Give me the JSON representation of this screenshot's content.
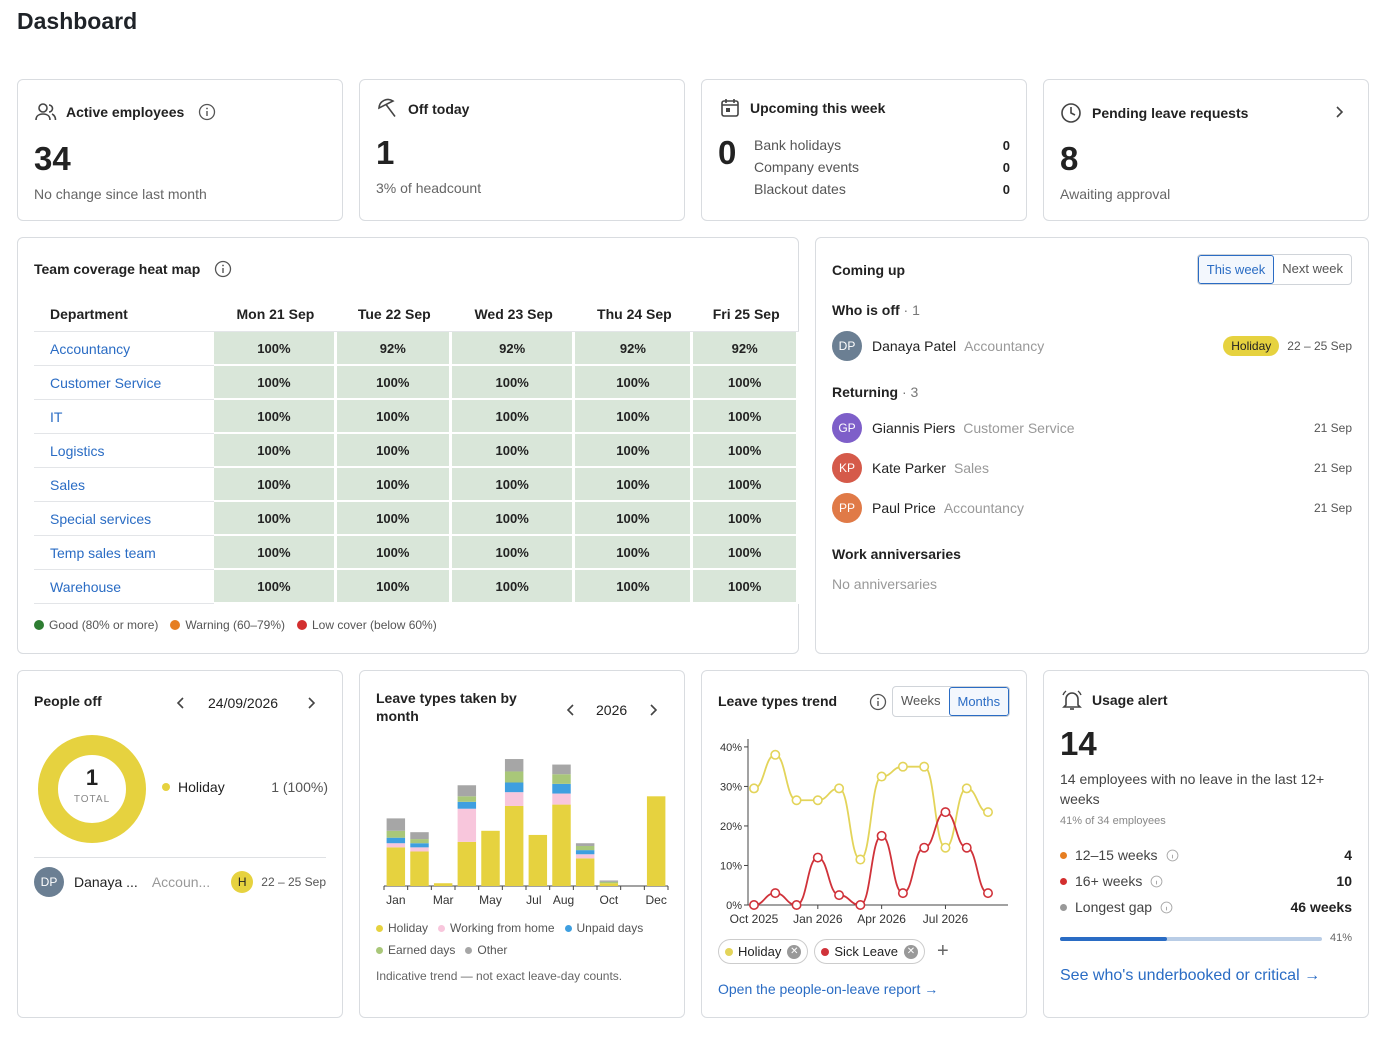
{
  "page": {
    "title": "Dashboard"
  },
  "cards": {
    "active": {
      "title": "Active employees",
      "value": "34",
      "sub": "No change since last month"
    },
    "off": {
      "title": "Off today",
      "value": "1",
      "sub": "3% of headcount"
    },
    "upcoming": {
      "title": "Upcoming this week",
      "value": "0",
      "items": [
        {
          "label": "Bank holidays",
          "value": "0"
        },
        {
          "label": "Company events",
          "value": "0"
        },
        {
          "label": "Blackout dates",
          "value": "0"
        }
      ]
    },
    "pending": {
      "title": "Pending leave requests",
      "value": "8",
      "sub": "Awaiting approval"
    }
  },
  "heatmap": {
    "title": "Team coverage heat map",
    "columns": [
      "Department",
      "Mon 21 Sep",
      "Tue 22 Sep",
      "Wed 23 Sep",
      "Thu 24 Sep",
      "Fri 25 Sep"
    ],
    "rows": [
      {
        "dept": "Accountancy",
        "vals": [
          "100%",
          "92%",
          "92%",
          "92%",
          "92%"
        ]
      },
      {
        "dept": "Customer Service",
        "vals": [
          "100%",
          "100%",
          "100%",
          "100%",
          "100%"
        ]
      },
      {
        "dept": "IT",
        "vals": [
          "100%",
          "100%",
          "100%",
          "100%",
          "100%"
        ]
      },
      {
        "dept": "Logistics",
        "vals": [
          "100%",
          "100%",
          "100%",
          "100%",
          "100%"
        ]
      },
      {
        "dept": "Sales",
        "vals": [
          "100%",
          "100%",
          "100%",
          "100%",
          "100%"
        ]
      },
      {
        "dept": "Special services",
        "vals": [
          "100%",
          "100%",
          "100%",
          "100%",
          "100%"
        ]
      },
      {
        "dept": "Temp sales team",
        "vals": [
          "100%",
          "100%",
          "100%",
          "100%",
          "100%"
        ]
      },
      {
        "dept": "Warehouse",
        "vals": [
          "100%",
          "100%",
          "100%",
          "100%",
          "100%"
        ]
      }
    ],
    "legend": [
      {
        "label": "Good (80% or more)",
        "color": "#2e7d32"
      },
      {
        "label": "Warning (60–79%)",
        "color": "#e67e22"
      },
      {
        "label": "Low cover (below 60%)",
        "color": "#d32f2f"
      }
    ]
  },
  "coming": {
    "title": "Coming up",
    "tabs": [
      "This week",
      "Next week"
    ],
    "off_label": "Who is off",
    "off_count": "· 1",
    "off": [
      {
        "initials": "DP",
        "name": "Danaya Patel",
        "dept": "Accountancy",
        "badge": "Holiday",
        "date": "22 – 25 Sep",
        "color": "#6b7f93"
      }
    ],
    "ret_label": "Returning",
    "ret_count": "· 3",
    "returning": [
      {
        "initials": "GP",
        "name": "Giannis Piers",
        "dept": "Customer Service",
        "date": "21 Sep",
        "color": "#7e5fc9"
      },
      {
        "initials": "KP",
        "name": "Kate Parker",
        "dept": "Sales",
        "date": "21 Sep",
        "color": "#d55a4a"
      },
      {
        "initials": "PP",
        "name": "Paul Price",
        "dept": "Accountancy",
        "date": "21 Sep",
        "color": "#e07a47"
      }
    ],
    "anniv_label": "Work anniversaries",
    "anniv_empty": "No anniversaries"
  },
  "peopleoff": {
    "title": "People off",
    "date": "24/09/2026",
    "total": "1",
    "total_label": "TOTAL",
    "legend": "Holiday",
    "legend_val": "1 (100%)",
    "person": {
      "initials": "DP",
      "name": "Danaya ...",
      "dept": "Accoun...",
      "badge": "H",
      "date": "22 – 25 Sep"
    }
  },
  "leavetypes": {
    "title": "Leave types taken by month",
    "year": "2026",
    "legend": [
      "Holiday",
      "Working from home",
      "Unpaid days",
      "Earned days",
      "Other"
    ],
    "note": "Indicative trend — not exact leave-day counts."
  },
  "trend": {
    "title": "Leave types trend",
    "tabs": [
      "Weeks",
      "Months"
    ],
    "chips": [
      "Holiday",
      "Sick Leave"
    ],
    "link": "Open the people-on-leave report →"
  },
  "usage": {
    "title": "Usage alert",
    "value": "14",
    "desc": "14 employees with no leave in the last 12+ weeks",
    "sub": "41% of 34 employees",
    "items": [
      {
        "label": "12–15 weeks",
        "value": "4",
        "color": "#e67e22"
      },
      {
        "label": "16+ weeks",
        "value": "10",
        "color": "#d32f2f"
      },
      {
        "label": "Longest gap",
        "value": "46 weeks",
        "color": "#999"
      }
    ],
    "pct": "41%",
    "progress": 0.41,
    "link": "See who's underbooked or critical →"
  },
  "chart_data": [
    {
      "type": "bar",
      "title": "Leave types taken by month",
      "categories": [
        "Jan",
        "Feb",
        "Mar",
        "Apr",
        "May",
        "Jun",
        "Jul",
        "Aug",
        "Sep",
        "Oct",
        "Nov",
        "Dec"
      ],
      "x_tick_labels": [
        "Jan",
        "Mar",
        "May",
        "Jul",
        "Aug",
        "Oct",
        "Dec"
      ],
      "series": [
        {
          "name": "Holiday",
          "color": "#e6d23f",
          "values": [
            28,
            25,
            2,
            32,
            40,
            58,
            37,
            59,
            20,
            2,
            0,
            65
          ]
        },
        {
          "name": "Working from home",
          "color": "#f8c6dc",
          "values": [
            3,
            3,
            0,
            24,
            0,
            10,
            0,
            8,
            3,
            0,
            0,
            0
          ]
        },
        {
          "name": "Unpaid days",
          "color": "#3e9fe0",
          "values": [
            4,
            3,
            0,
            5,
            0,
            7,
            0,
            7,
            3,
            0,
            0,
            0
          ]
        },
        {
          "name": "Earned days",
          "color": "#a9c779",
          "values": [
            5,
            3,
            0,
            4,
            0,
            8,
            0,
            7,
            3,
            1,
            0,
            0
          ]
        },
        {
          "name": "Other",
          "color": "#a6a6a6",
          "values": [
            9,
            5,
            0,
            8,
            0,
            9,
            0,
            7,
            2,
            1,
            0,
            0
          ]
        }
      ]
    },
    {
      "type": "line",
      "title": "Leave types trend",
      "x": [
        "Oct 2025",
        "Nov 2025",
        "Dec 2025",
        "Jan 2026",
        "Feb 2026",
        "Mar 2026",
        "Apr 2026",
        "May 2026",
        "Jun 2026",
        "Jul 2026",
        "Aug 2026",
        "Sep 2026"
      ],
      "x_tick_labels": [
        "Oct 2025",
        "Jan 2026",
        "Apr 2026",
        "Jul 2026"
      ],
      "yticks": [
        "0%",
        "10%",
        "20%",
        "30%",
        "40%"
      ],
      "ylim": [
        0,
        42
      ],
      "series": [
        {
          "name": "Holiday",
          "color": "#e3d45a",
          "values": [
            29.5,
            38,
            26.5,
            26.5,
            29.5,
            11.5,
            32.5,
            35,
            35,
            14.5,
            29.5,
            23.5
          ]
        },
        {
          "name": "Sick Leave",
          "color": "#d0323a",
          "values": [
            0,
            3,
            0,
            12,
            2.5,
            0,
            17.5,
            3,
            14.5,
            23.5,
            14.5,
            3
          ]
        }
      ]
    }
  ]
}
